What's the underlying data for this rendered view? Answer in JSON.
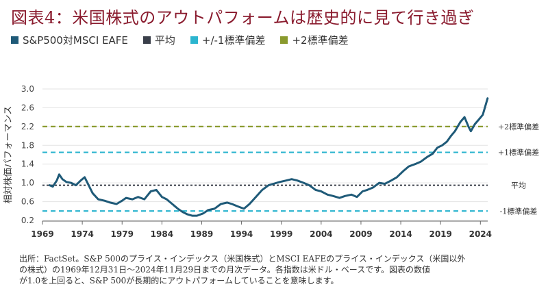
{
  "title": "図表4：米国株式のアウトパフォームは歴史的に見て行き過ぎ",
  "legend": [
    {
      "label": "S&P500対MSCI EAFE",
      "color": "#1f5a78"
    },
    {
      "label": "平均",
      "color": "#3a3f4a"
    },
    {
      "label": "+/-1標準偏差",
      "color": "#2cb5cf"
    },
    {
      "label": "+2標準偏差",
      "color": "#8a9a2e"
    }
  ],
  "footnote": [
    "出所：FactSet。S&P 500のプライス・インデックス（米国株式）とMSCI EAFEのプライス・インデックス（米国以外",
    "の株式）の1969年12月31日～2024年11月29日までの月次データ。各指数は米ドル・ベースです。図表の数値",
    "が1.0を上回ると、S&P 500が長期的にアウトパフォームしていることを意味します。"
  ],
  "chart_data": {
    "type": "line",
    "ylabel": "相対株価パフォーマンス",
    "xlim": [
      1969,
      2024.92
    ],
    "ylim": [
      0.2,
      3.0
    ],
    "xticks": [
      "1969",
      "1974",
      "1979",
      "1984",
      "1989",
      "1994",
      "1999",
      "2004",
      "2009",
      "2014",
      "2019",
      "2024"
    ],
    "yticks": [
      "3.0",
      "2.6",
      "2.2",
      "1.8",
      "1.4",
      "1.0",
      "0.6",
      "0.2"
    ],
    "grid": true,
    "series": [
      {
        "name": "S&P500対MSCI EAFE",
        "color": "#1f5a78",
        "x": [
          1969.9,
          1970.3,
          1970.8,
          1971.1,
          1971.5,
          1972.0,
          1972.6,
          1973.2,
          1973.8,
          1974.3,
          1974.8,
          1975.3,
          1976.0,
          1976.8,
          1977.5,
          1978.3,
          1979.0,
          1979.5,
          1980.3,
          1981.0,
          1981.8,
          1982.6,
          1983.3,
          1984.0,
          1984.6,
          1985.3,
          1986.0,
          1986.6,
          1987.2,
          1987.8,
          1988.4,
          1989.2,
          1989.8,
          1990.6,
          1991.4,
          1992.2,
          1992.8,
          1993.5,
          1994.3,
          1995.0,
          1995.8,
          1996.6,
          1997.4,
          1998.0,
          1998.8,
          1999.6,
          2000.3,
          2001.0,
          2001.8,
          2002.5,
          2003.3,
          2004.0,
          2004.8,
          2005.5,
          2006.3,
          2007.0,
          2007.8,
          2008.5,
          2009.2,
          2009.8,
          2010.5,
          2011.3,
          2012.0,
          2012.8,
          2013.5,
          2014.3,
          2015.0,
          2015.8,
          2016.5,
          2017.3,
          2018.0,
          2018.6,
          2019.2,
          2019.8,
          2020.3,
          2020.8,
          2021.5,
          2022.0,
          2022.5,
          2022.8,
          2023.3,
          2023.8,
          2024.3,
          2024.9
        ],
        "y": [
          0.95,
          0.92,
          1.05,
          1.18,
          1.08,
          1.02,
          1.0,
          0.95,
          1.05,
          1.12,
          0.95,
          0.78,
          0.65,
          0.62,
          0.58,
          0.55,
          0.62,
          0.68,
          0.65,
          0.7,
          0.65,
          0.82,
          0.85,
          0.7,
          0.65,
          0.55,
          0.45,
          0.38,
          0.33,
          0.3,
          0.3,
          0.35,
          0.42,
          0.45,
          0.55,
          0.58,
          0.55,
          0.5,
          0.45,
          0.55,
          0.7,
          0.85,
          0.95,
          0.98,
          1.02,
          1.05,
          1.08,
          1.05,
          1.0,
          0.95,
          0.85,
          0.82,
          0.75,
          0.72,
          0.68,
          0.72,
          0.75,
          0.7,
          0.82,
          0.85,
          0.9,
          1.0,
          0.98,
          1.05,
          1.12,
          1.25,
          1.35,
          1.4,
          1.45,
          1.55,
          1.62,
          1.75,
          1.8,
          1.88,
          2.0,
          2.1,
          2.3,
          2.4,
          2.2,
          2.1,
          2.25,
          2.35,
          2.45,
          2.8
        ]
      }
    ],
    "reference_lines": [
      {
        "label": "+2標準偏差",
        "value": 2.2,
        "color": "#8a9a2e"
      },
      {
        "label": "+1標準偏差",
        "value": 1.65,
        "color": "#2cb5cf"
      },
      {
        "label": "平均",
        "value": 0.95,
        "color": "#3a3f4a"
      },
      {
        "label": "-1標準偏差",
        "value": 0.4,
        "color": "#2cb5cf"
      }
    ]
  }
}
